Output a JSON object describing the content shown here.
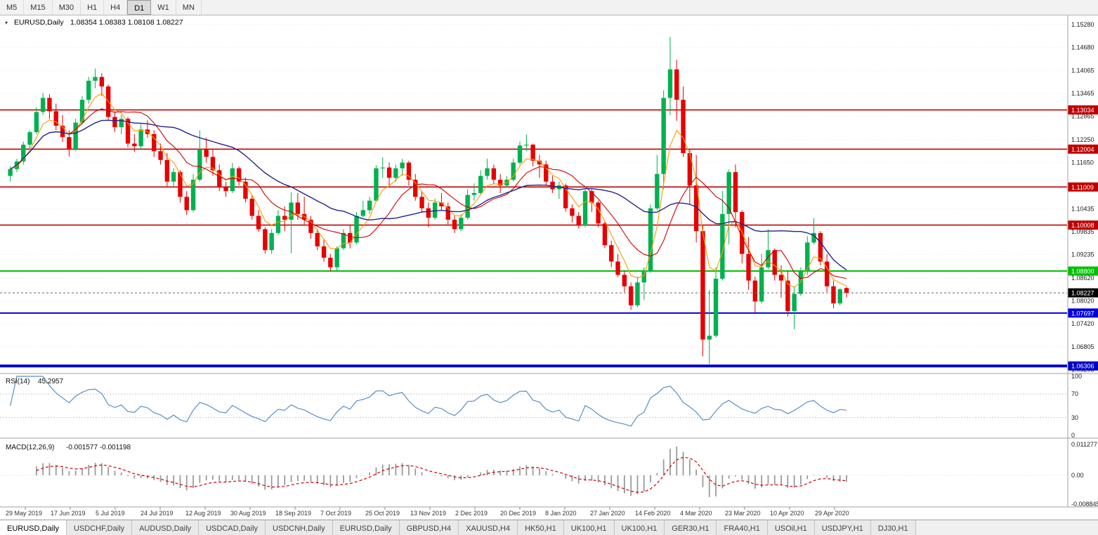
{
  "toolbar": {
    "timeframes": [
      {
        "label": "M5",
        "active": false
      },
      {
        "label": "M15",
        "active": false
      },
      {
        "label": "M30",
        "active": false
      },
      {
        "label": "H1",
        "active": false
      },
      {
        "label": "H4",
        "active": false
      },
      {
        "label": "D1",
        "active": true
      },
      {
        "label": "W1",
        "active": false
      },
      {
        "label": "MN",
        "active": false
      }
    ]
  },
  "chart": {
    "symbol": "EURUSD,Daily",
    "open": "1.08354",
    "high": "1.08383",
    "low": "1.08108",
    "close": "1.08227",
    "ohlc_text": "1.08354 1.08383 1.08108 1.08227",
    "bid": 1.08227,
    "bid_label": "1.08227",
    "menu_icon": "▾"
  },
  "indicators": {
    "rsi": {
      "name": "RSI(14)",
      "value": "45.2957",
      "axis": [
        "100",
        "70",
        "30",
        "0"
      ],
      "levels": [
        70,
        30
      ],
      "color": "#5b8ec4"
    },
    "macd": {
      "name": "MACD(12,26,9)",
      "values": "-0.001577 -0.001198",
      "axis_max": "0.011277",
      "axis_zero": "0.00",
      "axis_min": "-0.008845",
      "histogram_color": "#9a9a9a",
      "signal_color": "#cc0000"
    }
  },
  "chart_data": {
    "type": "candlestick",
    "title": "EURUSD Daily",
    "price_range": [
      1.06205,
      1.1528
    ],
    "axis_ticks": [
      "1.15280",
      "1.14680",
      "1.14065",
      "1.13465",
      "1.12865",
      "1.12250",
      "1.11650",
      "1.11035",
      "1.10435",
      "1.09835",
      "1.09235",
      "1.08620",
      "1.08020",
      "1.07420",
      "1.06805",
      "1.06205"
    ],
    "dates": [
      "29 May 2019",
      "17 Jun 2019",
      "5 Jul 2019",
      "24 Jul 2019",
      "12 Aug 2019",
      "30 Aug 2019",
      "18 Sep 2019",
      "7 Oct 2019",
      "25 Oct 2019",
      "13 Nov 2019",
      "2 Dec 2019",
      "20 Dec 2019",
      "8 Jan 2020",
      "27 Jan 2020",
      "14 Feb 2020",
      "4 Mar 2020",
      "23 Mar 2020",
      "10 Apr 2020",
      "29 Apr 2020"
    ],
    "levels": [
      {
        "price": 1.13034,
        "label": "1.13034",
        "color": "#c00000",
        "width": 1.6
      },
      {
        "price": 1.12004,
        "label": "1.12004",
        "color": "#c00000",
        "width": 1.6
      },
      {
        "price": 1.11009,
        "label": "1.11009",
        "color": "#c00000",
        "width": 1.6
      },
      {
        "price": 1.10008,
        "label": "1.10008",
        "color": "#c00000",
        "width": 1.6
      },
      {
        "price": 1.088,
        "label": "1.08800",
        "color": "#00c000",
        "width": 2
      },
      {
        "price": 1.07697,
        "label": "1.07697",
        "color": "#0000e0",
        "width": 2
      },
      {
        "price": 1.06306,
        "label": "1.06306",
        "color": "#0000cc",
        "width": 4
      }
    ],
    "up_color": "#00b14f",
    "down_color": "#e60000",
    "moving_averages": [
      {
        "period": 5,
        "type": "ema",
        "color": "#ff9900"
      },
      {
        "period": 10,
        "type": "sma",
        "color": "#cc0000"
      },
      {
        "period": 24,
        "type": "sma",
        "color": "#23238e"
      }
    ],
    "candles": [
      [
        1.113,
        1.1155,
        1.1115,
        1.1148
      ],
      [
        1.1148,
        1.1175,
        1.114,
        1.1168
      ],
      [
        1.1168,
        1.122,
        1.116,
        1.1212
      ],
      [
        1.1212,
        1.125,
        1.12,
        1.1245
      ],
      [
        1.1245,
        1.131,
        1.124,
        1.1298
      ],
      [
        1.1298,
        1.1348,
        1.129,
        1.1335
      ],
      [
        1.1335,
        1.1345,
        1.128,
        1.13
      ],
      [
        1.13,
        1.132,
        1.125,
        1.1262
      ],
      [
        1.1262,
        1.129,
        1.122,
        1.1232
      ],
      [
        1.1232,
        1.125,
        1.1181,
        1.12
      ],
      [
        1.12,
        1.128,
        1.1195,
        1.127
      ],
      [
        1.127,
        1.134,
        1.1265,
        1.133
      ],
      [
        1.133,
        1.139,
        1.132,
        1.138
      ],
      [
        1.138,
        1.1412,
        1.136,
        1.139
      ],
      [
        1.139,
        1.14,
        1.134,
        1.1365
      ],
      [
        1.1365,
        1.137,
        1.1275,
        1.1285
      ],
      [
        1.1285,
        1.13,
        1.1245,
        1.1258
      ],
      [
        1.1258,
        1.129,
        1.124,
        1.128
      ],
      [
        1.128,
        1.1285,
        1.1205,
        1.1215
      ],
      [
        1.1215,
        1.124,
        1.1193,
        1.1208
      ],
      [
        1.1208,
        1.1265,
        1.12,
        1.1252
      ],
      [
        1.1252,
        1.1276,
        1.123,
        1.124
      ],
      [
        1.124,
        1.125,
        1.118,
        1.1195
      ],
      [
        1.1195,
        1.1215,
        1.116,
        1.1172
      ],
      [
        1.1172,
        1.119,
        1.1101,
        1.1115
      ],
      [
        1.1115,
        1.115,
        1.11,
        1.114
      ],
      [
        1.114,
        1.1145,
        1.106,
        1.1075
      ],
      [
        1.1075,
        1.109,
        1.1027,
        1.104
      ],
      [
        1.104,
        1.1135,
        1.1035,
        1.112
      ],
      [
        1.112,
        1.125,
        1.1115,
        1.12
      ],
      [
        1.12,
        1.123,
        1.1165,
        1.118
      ],
      [
        1.118,
        1.12,
        1.113,
        1.1145
      ],
      [
        1.1145,
        1.116,
        1.109,
        1.11
      ],
      [
        1.11,
        1.1115,
        1.1075,
        1.109
      ],
      [
        1.109,
        1.1164,
        1.1085,
        1.115
      ],
      [
        1.115,
        1.1155,
        1.1105,
        1.1115
      ],
      [
        1.1115,
        1.1125,
        1.106,
        1.107
      ],
      [
        1.107,
        1.108,
        1.1015,
        1.1025
      ],
      [
        1.1025,
        1.104,
        1.0983,
        1.099
      ],
      [
        1.099,
        1.0995,
        1.0926,
        1.0935
      ],
      [
        1.0935,
        1.099,
        1.0925,
        1.098
      ],
      [
        1.098,
        1.104,
        1.0975,
        1.1025
      ],
      [
        1.1025,
        1.105,
        1.0985,
        1.1015
      ],
      [
        1.1015,
        1.1087,
        1.0927,
        1.106
      ],
      [
        1.106,
        1.1085,
        1.1015,
        1.103
      ],
      [
        1.103,
        1.1075,
        1.1,
        1.1015
      ],
      [
        1.1015,
        1.1025,
        1.0965,
        1.098
      ],
      [
        1.098,
        1.099,
        1.0935,
        1.0945
      ],
      [
        1.0945,
        1.0965,
        1.0905,
        1.0915
      ],
      [
        1.0915,
        1.0925,
        1.0879,
        1.089
      ],
      [
        1.089,
        1.0945,
        1.088,
        1.094
      ],
      [
        1.094,
        1.099,
        1.0935,
        1.098
      ],
      [
        1.098,
        1.1,
        1.094,
        1.0955
      ],
      [
        1.0955,
        1.1035,
        1.095,
        1.1025
      ],
      [
        1.1025,
        1.1065,
        1.102,
        1.104
      ],
      [
        1.104,
        1.1075,
        1.103,
        1.1065
      ],
      [
        1.1065,
        1.1158,
        1.106,
        1.115
      ],
      [
        1.115,
        1.1179,
        1.1125,
        1.1152
      ],
      [
        1.1152,
        1.1165,
        1.1105,
        1.1125
      ],
      [
        1.1125,
        1.116,
        1.1115,
        1.115
      ],
      [
        1.115,
        1.1175,
        1.113,
        1.1165
      ],
      [
        1.1165,
        1.117,
        1.1105,
        1.112
      ],
      [
        1.112,
        1.1135,
        1.1065,
        1.1075
      ],
      [
        1.1075,
        1.109,
        1.1035,
        1.1045
      ],
      [
        1.1045,
        1.106,
        1.0995,
        1.102
      ],
      [
        1.102,
        1.107,
        1.1015,
        1.106
      ],
      [
        1.106,
        1.1085,
        1.104,
        1.105
      ],
      [
        1.105,
        1.106,
        1.1003,
        1.1015
      ],
      [
        1.1015,
        1.1025,
        1.098,
        1.099
      ],
      [
        1.099,
        1.103,
        1.0985,
        1.102
      ],
      [
        1.102,
        1.1095,
        1.1015,
        1.108
      ],
      [
        1.108,
        1.111,
        1.1065,
        1.1085
      ],
      [
        1.1085,
        1.1145,
        1.108,
        1.113
      ],
      [
        1.113,
        1.1175,
        1.112,
        1.115
      ],
      [
        1.115,
        1.116,
        1.111,
        1.112
      ],
      [
        1.112,
        1.1135,
        1.1085,
        1.1105
      ],
      [
        1.1105,
        1.113,
        1.11,
        1.112
      ],
      [
        1.112,
        1.1175,
        1.1115,
        1.1165
      ],
      [
        1.1165,
        1.122,
        1.116,
        1.121
      ],
      [
        1.121,
        1.1239,
        1.1195,
        1.1212
      ],
      [
        1.1212,
        1.1215,
        1.1155,
        1.117
      ],
      [
        1.117,
        1.1185,
        1.1125,
        1.116
      ],
      [
        1.116,
        1.117,
        1.1105,
        1.1115
      ],
      [
        1.1115,
        1.113,
        1.1085,
        1.1095
      ],
      [
        1.1095,
        1.1115,
        1.107,
        1.1105
      ],
      [
        1.1105,
        1.111,
        1.1036,
        1.1045
      ],
      [
        1.1045,
        1.1055,
        1.1008,
        1.1025
      ],
      [
        1.1025,
        1.1035,
        1.0992,
        1.1
      ],
      [
        1.1,
        1.1095,
        1.0995,
        1.109
      ],
      [
        1.109,
        1.1095,
        1.1035,
        1.106
      ],
      [
        1.106,
        1.1065,
        1.0995,
        1.1005
      ],
      [
        1.1005,
        1.101,
        1.094,
        1.0948
      ],
      [
        1.0948,
        1.096,
        1.089,
        1.0905
      ],
      [
        1.0905,
        1.0925,
        1.0865,
        1.087
      ],
      [
        1.087,
        1.088,
        1.0825,
        1.084
      ],
      [
        1.084,
        1.085,
        1.0778,
        1.079
      ],
      [
        1.079,
        1.0865,
        1.0785,
        1.085
      ],
      [
        1.085,
        1.089,
        1.0805,
        1.088
      ],
      [
        1.088,
        1.1055,
        1.0875,
        1.1045
      ],
      [
        1.1045,
        1.1185,
        1.104,
        1.1135
      ],
      [
        1.1135,
        1.1355,
        1.1095,
        1.1335
      ],
      [
        1.1335,
        1.1495,
        1.129,
        1.141
      ],
      [
        1.141,
        1.1435,
        1.1275,
        1.133
      ],
      [
        1.133,
        1.1365,
        1.118,
        1.119
      ],
      [
        1.119,
        1.12,
        1.1055,
        1.1105
      ],
      [
        1.1105,
        1.1185,
        1.0955,
        1.0985
      ],
      [
        1.0985,
        1.1,
        1.0656,
        1.07
      ],
      [
        1.07,
        1.083,
        1.0636,
        1.071
      ],
      [
        1.071,
        1.089,
        1.0705,
        1.086
      ],
      [
        1.086,
        1.109,
        1.0855,
        1.103
      ],
      [
        1.103,
        1.1147,
        1.095,
        1.114
      ],
      [
        1.114,
        1.116,
        1.0995,
        1.1035
      ],
      [
        1.1035,
        1.104,
        1.09,
        1.0925
      ],
      [
        1.0925,
        1.097,
        1.083,
        1.0855
      ],
      [
        1.0855,
        1.0865,
        1.077,
        1.08
      ],
      [
        1.08,
        1.0925,
        1.0795,
        1.089
      ],
      [
        1.089,
        1.099,
        1.0885,
        1.0935
      ],
      [
        1.0935,
        1.094,
        1.0855,
        1.087
      ],
      [
        1.087,
        1.0895,
        1.081,
        1.0855
      ],
      [
        1.0855,
        1.088,
        1.0761,
        1.0775
      ],
      [
        1.0775,
        1.084,
        1.0727,
        1.082
      ],
      [
        1.082,
        1.089,
        1.0815,
        1.088
      ],
      [
        1.088,
        1.0972,
        1.087,
        1.0955
      ],
      [
        1.0955,
        1.1019,
        1.095,
        1.098
      ],
      [
        1.098,
        1.0985,
        1.0895,
        1.0905
      ],
      [
        1.0905,
        1.0925,
        1.0825,
        1.084
      ],
      [
        1.084,
        1.0855,
        1.0782,
        1.0795
      ],
      [
        1.0795,
        1.0835,
        1.079,
        1.0832
      ],
      [
        1.08354,
        1.08383,
        1.08108,
        1.08227
      ]
    ]
  },
  "tabbar": {
    "tabs": [
      {
        "label": "EURUSD,Daily",
        "active": true
      },
      {
        "label": "USDCHF,Daily",
        "active": false
      },
      {
        "label": "AUDUSD,Daily",
        "active": false
      },
      {
        "label": "USDCAD,Daily",
        "active": false
      },
      {
        "label": "USDCNH,Daily",
        "active": false
      },
      {
        "label": "EURUSD,Daily",
        "active": false
      },
      {
        "label": "GBPUSD,H4",
        "active": false
      },
      {
        "label": "XAUUSD,H4",
        "active": false
      },
      {
        "label": "HK50,H1",
        "active": false
      },
      {
        "label": "UK100,H1",
        "active": false
      },
      {
        "label": "UK100,H1",
        "active": false
      },
      {
        "label": "GER30,H1",
        "active": false
      },
      {
        "label": "FRA40,H1",
        "active": false
      },
      {
        "label": "USOil,H1",
        "active": false
      },
      {
        "label": "USDJPY,H1",
        "active": false
      },
      {
        "label": "DJ30,H1",
        "active": false
      }
    ]
  }
}
